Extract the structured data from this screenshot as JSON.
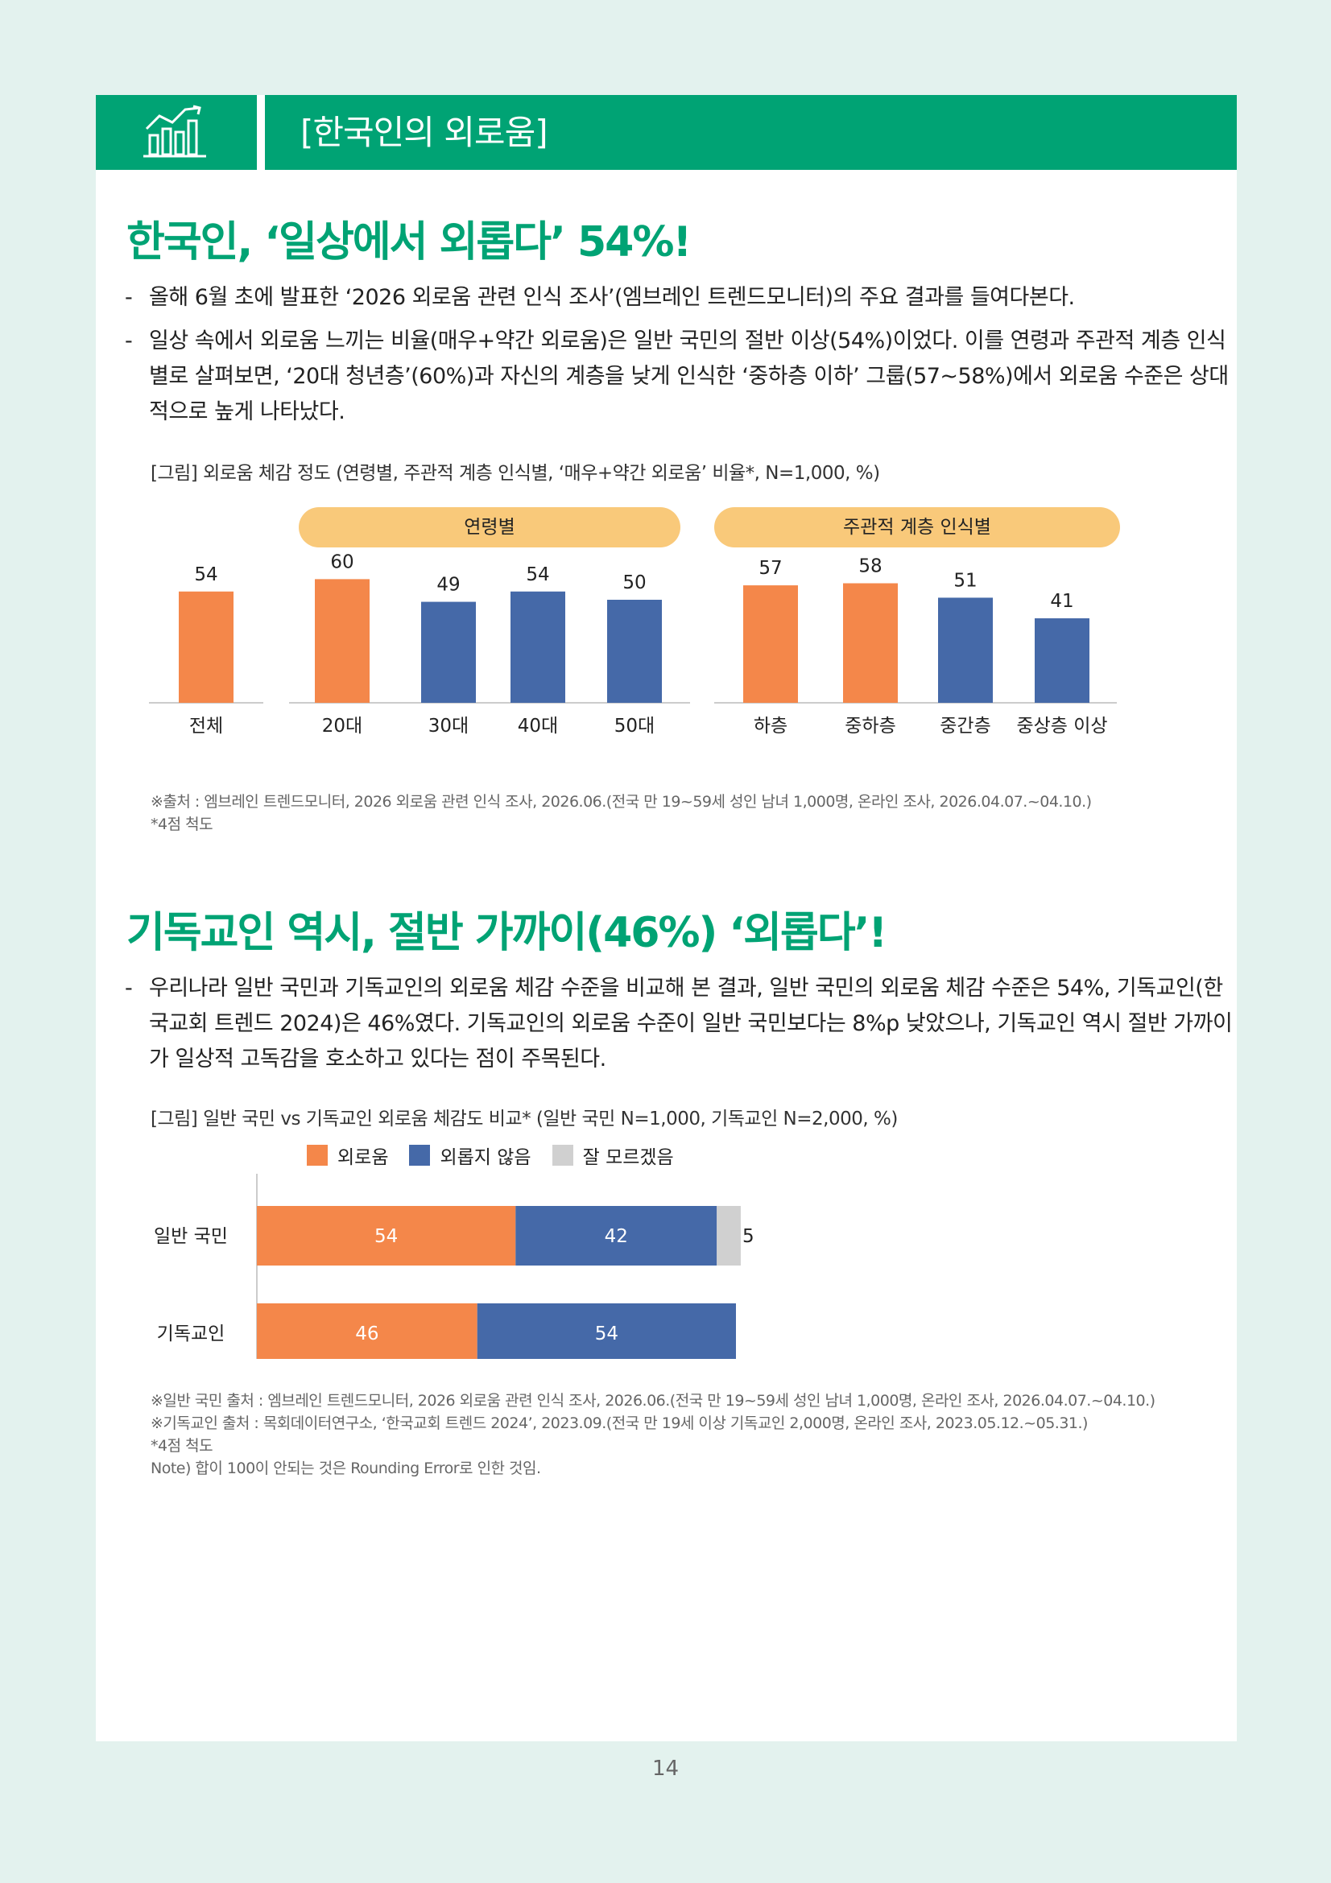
{
  "header": {
    "title": "[한국인의 외로움]",
    "icon": "bar-chart-growth-icon"
  },
  "section1": {
    "heading": "한국인, ‘일상에서 외롭다’ 54%!",
    "bullets": [
      "올해 6월 초에 발표한 ‘2026 외로움 관련 인식 조사’(엠브레인 트렌드모니터)의 주요 결과를 들여다본다.",
      "일상 속에서 외로움 느끼는 비율(매우+약간 외로움)은 일반 국민의 절반 이상(54%)이었다. 이를 연령과 주관적 계층 인식별로 살펴보면, ‘20대 청년층’(60%)과 자신의 계층을 낮게 인식한 ‘중하층 이하’ 그룹(57~58%)에서 외로움 수준은 상대적으로 높게 나타났다."
    ],
    "figure_caption": "[그림] 외로움 체감 정도 (연령별, 주관적 계층 인식별, ‘매우+약간 외로움’ 비율*, N=1,000, %)",
    "group_labels": {
      "age": "연령별",
      "class": "주관적 계층 인식별"
    },
    "sources": [
      "※출처 : 엠브레인 트렌드모니터, 2026 외로움 관련 인식 조사, 2026.06.(전국 만 19~59세 성인 남녀 1,000명, 온라인 조사, 2026.04.07.~04.10.)",
      "*4점 척도"
    ]
  },
  "section2": {
    "heading": "기독교인 역시, 절반 가까이(46%) ‘외롭다’!",
    "bullets": [
      "우리나라 일반 국민과 기독교인의 외로움 체감 수준을 비교해 본 결과, 일반 국민의 외로움 체감 수준은 54%, 기독교인(한국교회 트렌드 2024)은 46%였다. 기독교인의 외로움 수준이 일반 국민보다는 8%p 낮았으나, 기독교인 역시 절반 가까이가 일상적 고독감을 호소하고 있다는 점이 주목된다."
    ],
    "figure_caption": "[그림] 일반 국민 vs 기독교인 외로움 체감도 비교* (일반 국민 N=1,000, 기독교인 N=2,000, %)",
    "sources": [
      "※일반 국민 출처 : 엠브레인 트렌드모니터, 2026 외로움 관련 인식 조사, 2026.06.(전국 만 19~59세 성인 남녀 1,000명, 온라인 조사, 2026.04.07.~04.10.)",
      "※기독교인 출처 : 목회데이터연구소, ‘한국교회 트렌드 2024’, 2023.09.(전국 만 19세 이상 기독교인 2,000명, 온라인 조사, 2023.05.12.~05.31.)",
      "*4점 척도",
      "Note) 합이 100이 안되는 것은 Rounding Error로 인한 것임."
    ]
  },
  "page_number": "14",
  "colors": {
    "green": "#00a374",
    "orange": "#f4874a",
    "blue": "#4569a8",
    "gray": "#d0d0d0",
    "pill": "#f9c97a"
  },
  "chart_data": [
    {
      "type": "bar",
      "categories": [
        "전체",
        "20대",
        "30대",
        "40대",
        "50대",
        "하층",
        "중하층",
        "중간층",
        "중상층 이상"
      ],
      "values": [
        54,
        60,
        49,
        54,
        50,
        57,
        58,
        51,
        41
      ],
      "highlight": [
        true,
        true,
        false,
        false,
        false,
        true,
        true,
        false,
        false
      ],
      "groups": [
        {
          "label": "연령별",
          "categories": [
            "20대",
            "30대",
            "40대",
            "50대"
          ]
        },
        {
          "label": "주관적 계층 인식별",
          "categories": [
            "하층",
            "중하층",
            "중간층",
            "중상층 이상"
          ]
        }
      ],
      "ylim": [
        0,
        70
      ]
    },
    {
      "type": "bar",
      "orientation": "horizontal-stacked",
      "categories": [
        "일반 국민",
        "기독교인"
      ],
      "series": [
        {
          "name": "외로움",
          "values": [
            54,
            46
          ]
        },
        {
          "name": "외롭지 않음",
          "values": [
            42,
            54
          ]
        },
        {
          "name": "잘 모르겠음",
          "values": [
            5,
            0
          ]
        }
      ],
      "xlim": [
        0,
        100
      ],
      "legend": "top"
    }
  ]
}
